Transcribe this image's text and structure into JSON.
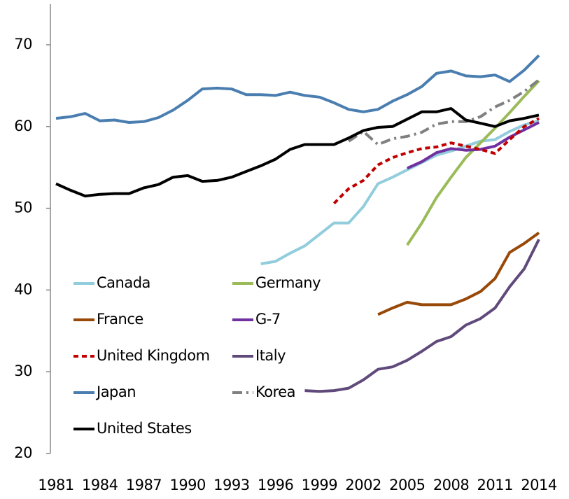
{
  "chart_data": {
    "type": "line",
    "x": [
      1981,
      1982,
      1983,
      1984,
      1985,
      1986,
      1987,
      1988,
      1989,
      1990,
      1991,
      1992,
      1993,
      1994,
      1995,
      1996,
      1997,
      1998,
      1999,
      2000,
      2001,
      2002,
      2003,
      2004,
      2005,
      2006,
      2007,
      2008,
      2009,
      2010,
      2011,
      2012,
      2013,
      2014
    ],
    "series": [
      {
        "name": "Canada",
        "color": "#92cddc",
        "values": [
          null,
          null,
          null,
          null,
          null,
          null,
          null,
          null,
          null,
          null,
          null,
          null,
          null,
          null,
          43.2,
          43.5,
          44.5,
          45.4,
          46.8,
          48.2,
          48.2,
          50.2,
          53.0,
          53.8,
          54.7,
          55.6,
          56.5,
          57.0,
          57.6,
          58.2,
          58.4,
          59.4,
          60.2,
          60.7
        ]
      },
      {
        "name": "Germany",
        "color": "#9bbb59",
        "values": [
          null,
          null,
          null,
          null,
          null,
          null,
          null,
          null,
          null,
          null,
          null,
          null,
          null,
          null,
          null,
          null,
          null,
          null,
          null,
          null,
          null,
          null,
          null,
          null,
          45.5,
          48.2,
          51.3,
          53.8,
          56.2,
          58.0,
          59.8,
          61.7,
          63.7,
          65.6
        ]
      },
      {
        "name": "France",
        "color": "#984807",
        "values": [
          null,
          null,
          null,
          null,
          null,
          null,
          null,
          null,
          null,
          null,
          null,
          null,
          null,
          null,
          null,
          null,
          null,
          null,
          null,
          null,
          null,
          null,
          37.0,
          37.8,
          38.5,
          38.2,
          38.2,
          38.2,
          38.9,
          39.8,
          41.4,
          44.6,
          45.7,
          47.0
        ]
      },
      {
        "name": "G-7",
        "color": "#7030a0",
        "values": [
          null,
          null,
          null,
          null,
          null,
          null,
          null,
          null,
          null,
          null,
          null,
          null,
          null,
          null,
          null,
          null,
          null,
          null,
          null,
          null,
          null,
          null,
          null,
          null,
          54.9,
          55.7,
          56.8,
          57.3,
          57.1,
          57.2,
          57.6,
          58.7,
          59.6,
          60.5
        ]
      },
      {
        "name": "United Kingdom",
        "color": "#c00000",
        "dash": "dashed",
        "values": [
          null,
          null,
          null,
          null,
          null,
          null,
          null,
          null,
          null,
          null,
          null,
          null,
          null,
          null,
          null,
          null,
          null,
          null,
          null,
          50.6,
          52.4,
          53.4,
          55.3,
          56.2,
          56.8,
          57.3,
          57.5,
          58.0,
          57.6,
          57.2,
          56.7,
          58.4,
          60.0,
          61.0
        ]
      },
      {
        "name": "Italy",
        "color": "#604a7b",
        "values": [
          null,
          null,
          null,
          null,
          null,
          null,
          null,
          null,
          null,
          null,
          null,
          null,
          null,
          null,
          null,
          null,
          null,
          27.7,
          27.6,
          27.7,
          28.0,
          29.0,
          30.3,
          30.6,
          31.4,
          32.5,
          33.7,
          34.3,
          35.7,
          36.5,
          37.8,
          40.4,
          42.6,
          46.2
        ]
      },
      {
        "name": "Japan",
        "color": "#4a7eb0",
        "values": [
          61.0,
          61.2,
          61.6,
          60.7,
          60.8,
          60.5,
          60.6,
          61.1,
          62.0,
          63.2,
          64.6,
          64.7,
          64.6,
          63.9,
          63.9,
          63.8,
          64.2,
          63.8,
          63.6,
          62.9,
          62.1,
          61.8,
          62.1,
          63.1,
          63.9,
          64.9,
          66.5,
          66.8,
          66.2,
          66.1,
          66.3,
          65.5,
          66.9,
          68.7
        ]
      },
      {
        "name": "Korea",
        "color": "#808080",
        "dash": "dashdot",
        "values": [
          null,
          null,
          null,
          null,
          null,
          null,
          null,
          null,
          null,
          null,
          null,
          null,
          null,
          null,
          null,
          null,
          null,
          null,
          null,
          null,
          58.2,
          59.4,
          57.8,
          58.5,
          58.8,
          59.3,
          60.3,
          60.6,
          60.6,
          61.2,
          62.4,
          63.2,
          64.3,
          65.7
        ]
      },
      {
        "name": "United States",
        "color": "#000000",
        "values": [
          53.0,
          52.2,
          51.5,
          51.7,
          51.8,
          51.8,
          52.5,
          52.9,
          53.8,
          54.0,
          53.3,
          53.4,
          53.8,
          54.5,
          55.2,
          56.0,
          57.2,
          57.8,
          57.8,
          57.8,
          58.6,
          59.5,
          59.9,
          60.0,
          60.9,
          61.8,
          61.8,
          62.2,
          60.8,
          60.4,
          60.0,
          60.7,
          61.0,
          61.4
        ]
      }
    ],
    "xlim": [
      1981,
      2014
    ],
    "xticks": [
      1981,
      1984,
      1987,
      1990,
      1993,
      1996,
      1999,
      2002,
      2005,
      2008,
      2011,
      2014
    ],
    "ylim": [
      20,
      70
    ],
    "yticks": [
      20,
      30,
      40,
      50,
      60,
      70
    ]
  }
}
